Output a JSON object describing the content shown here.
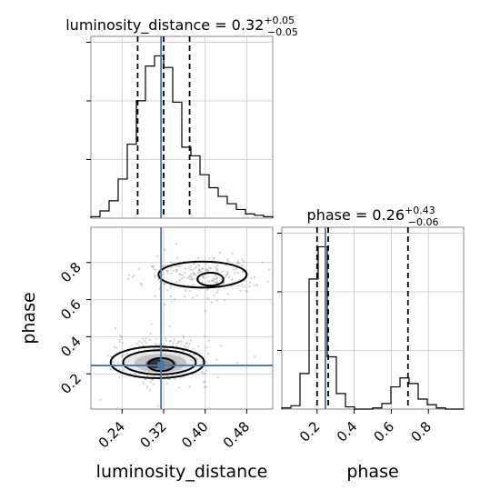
{
  "chart_data": {
    "type": "corner",
    "parameters": [
      "luminosity_distance",
      "phase"
    ],
    "titles": {
      "luminosity_distance": {
        "prefix": "luminosity_distance = 0.32",
        "plus": "+0.05",
        "minus": "−0.05"
      },
      "phase": {
        "prefix": "phase = 0.26",
        "plus": "+0.43",
        "minus": "−0.06"
      }
    },
    "axis_labels": {
      "x_bottom_left": "luminosity_distance",
      "x_bottom_right": "phase",
      "y_left": "phase"
    },
    "ranges": {
      "luminosity_distance": [
        0.18,
        0.53
      ],
      "phase": [
        0.01,
        0.99
      ]
    },
    "ticks": {
      "luminosity_distance": [
        "0.24",
        "0.32",
        "0.40",
        "0.48"
      ],
      "phase": [
        "0.2",
        "0.4",
        "0.6",
        "0.8"
      ]
    },
    "truth": {
      "luminosity_distance": 0.315,
      "phase": 0.245
    },
    "truth_color": "#4477aa",
    "quantiles": {
      "luminosity_distance": [
        0.27,
        0.32,
        0.37
      ],
      "phase": [
        0.2,
        0.26,
        0.69
      ]
    },
    "hist_luminosity_distance": {
      "bin_edges": [
        0.18,
        0.1975,
        0.215,
        0.2325,
        0.25,
        0.2675,
        0.285,
        0.3025,
        0.32,
        0.3375,
        0.355,
        0.3725,
        0.39,
        0.4075,
        0.425,
        0.4425,
        0.46,
        0.4775,
        0.495,
        0.5125,
        0.53
      ],
      "counts": [
        1,
        5,
        12,
        27,
        51,
        81,
        105,
        112,
        104,
        80,
        49,
        43,
        30,
        21,
        15,
        10,
        6,
        3,
        2,
        1
      ]
    },
    "hist_phase": {
      "bin_edges": [
        0.01,
        0.059,
        0.108,
        0.157,
        0.206,
        0.255,
        0.304,
        0.353,
        0.402,
        0.451,
        0.5,
        0.549,
        0.598,
        0.647,
        0.696,
        0.745,
        0.794,
        0.843,
        0.892,
        0.941,
        0.99
      ],
      "counts": [
        1,
        3,
        32,
        117,
        146,
        47,
        14,
        2,
        0,
        0,
        1,
        5,
        20,
        28,
        23,
        9,
        4,
        1,
        0,
        0
      ]
    },
    "contour_levels": [
      {
        "ellipse": {
          "cx": 0.315,
          "cy": 0.25,
          "rx": 0.025,
          "ry": 0.035
        }
      },
      {
        "ellipse": {
          "cx": 0.312,
          "cy": 0.262,
          "rx": 0.07,
          "ry": 0.065
        }
      },
      {
        "ellipse": {
          "cx": 0.308,
          "cy": 0.262,
          "rx": 0.09,
          "ry": 0.085
        }
      },
      {
        "ellipse": {
          "cx": 0.41,
          "cy": 0.71,
          "rx": 0.025,
          "ry": 0.035
        }
      },
      {
        "ellipse": {
          "cx": 0.395,
          "cy": 0.735,
          "rx": 0.085,
          "ry": 0.07
        }
      }
    ],
    "grid": true
  }
}
